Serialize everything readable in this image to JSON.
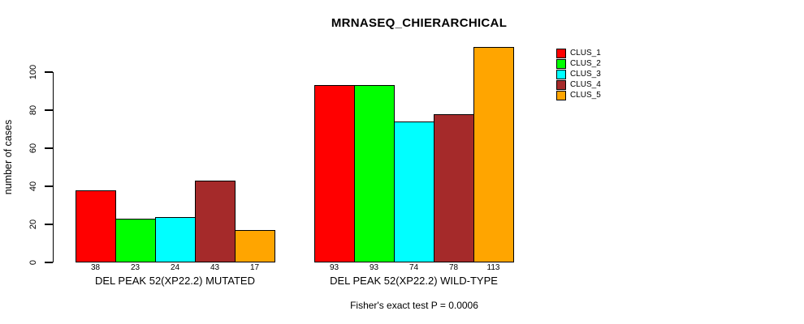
{
  "title": "MRNASEQ_CHIERARCHICAL",
  "caption": "Fisher's exact test P = 0.0006",
  "chart_data": {
    "type": "bar",
    "title": "MRNASEQ_CHIERARCHICAL",
    "xlabel": "",
    "ylabel": "number of cases",
    "categories": [
      "DEL PEAK 52(XP22.2) MUTATED",
      "DEL PEAK 52(XP22.2) WILD-TYPE"
    ],
    "series": [
      {
        "name": "CLUS_1",
        "color": "#FF0000",
        "values": [
          38,
          93
        ]
      },
      {
        "name": "CLUS_2",
        "color": "#00FF00",
        "values": [
          23,
          93
        ]
      },
      {
        "name": "CLUS_3",
        "color": "#00FFFF",
        "values": [
          24,
          74
        ]
      },
      {
        "name": "CLUS_4",
        "color": "#A52A2A",
        "values": [
          43,
          78
        ]
      },
      {
        "name": "CLUS_5",
        "color": "#FFA500",
        "values": [
          17,
          113
        ]
      }
    ],
    "bar_value_labels": {
      "DEL PEAK 52(XP22.2) MUTATED": [
        38,
        23,
        24,
        43,
        17
      ],
      "DEL PEAK 52(XP22.2) WILD-TYPE": [
        93,
        93,
        74,
        78,
        113
      ]
    },
    "yticks": [
      0,
      20,
      40,
      60,
      80,
      100
    ],
    "ylim": [
      0,
      117
    ],
    "grid": false,
    "legend_position": "right",
    "legend_labels": [
      "CLUS_1",
      "CLUS_2",
      "CLUS_3",
      "CLUS_4",
      "CLUS_5"
    ],
    "annotation": "Fisher's exact test P = 0.0006",
    "axis_color": "#000000",
    "background_color": "#FFFFFF"
  }
}
